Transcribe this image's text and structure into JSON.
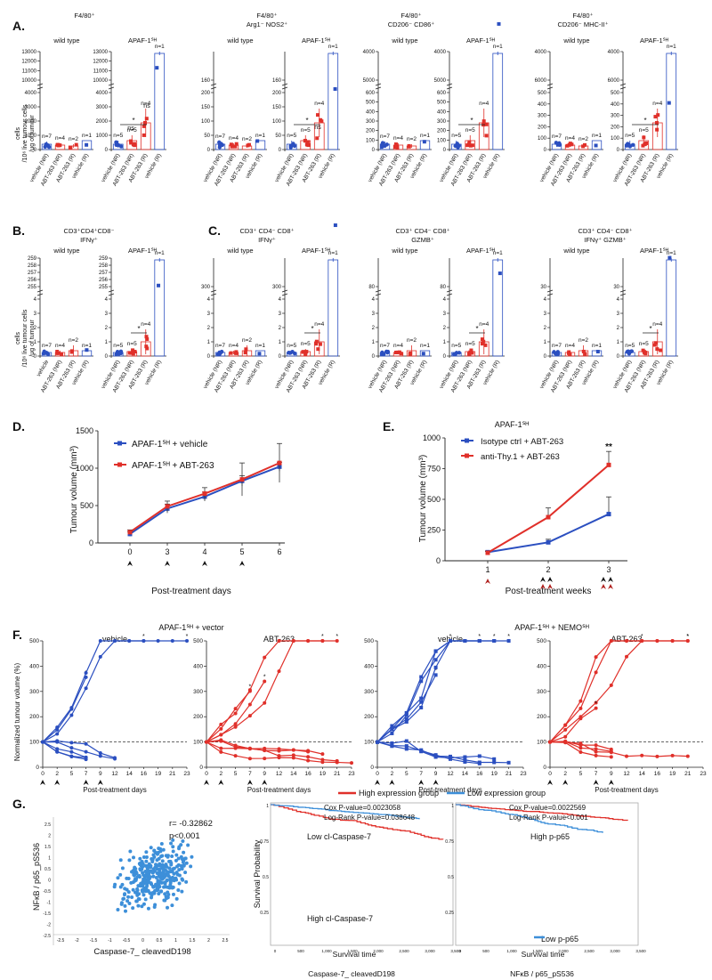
{
  "colors": {
    "blue": "#2b4fc0",
    "red": "#e0302a",
    "darkred": "#b0201d",
    "black": "#111111",
    "gray": "#777777"
  },
  "panels": {
    "A": {
      "letter": "A.",
      "ylabel": [
        "cells",
        "/10⁶ live tumour cells",
        "/μg of tumour"
      ],
      "groups": [
        {
          "title": [
            "F4/80⁺"
          ]
        },
        {
          "title": [
            "F4/80⁺",
            "Arg1⁻ NOS2⁺"
          ]
        },
        {
          "title": [
            "F4/80⁺",
            "CD206⁻ CD86⁺"
          ]
        },
        {
          "title": [
            "F4/80⁺",
            "CD206⁻ MHC-II⁺"
          ]
        }
      ]
    },
    "B": {
      "letter": "B.",
      "ylabel": [
        "cells",
        "/10⁶ live tumour cells",
        "/μg of tumour"
      ],
      "groups": [
        {
          "title": [
            "CD3⁺CD4⁺CD8⁻",
            "IFNγ⁺"
          ]
        }
      ]
    },
    "C": {
      "letter": "C.",
      "groups": [
        {
          "title": [
            "CD3⁺ CD4⁻ CD8⁺",
            "IFNγ⁺"
          ]
        },
        {
          "title": [
            "CD3⁺ CD4⁻ CD8⁺",
            "GZMB⁺"
          ]
        },
        {
          "title": [
            "CD3⁺ CD4⁻ CD8⁺",
            "IFNγ⁺ GZMB⁺"
          ]
        }
      ]
    },
    "subtitles": {
      "wt": "wild type",
      "apaf": "APAF-1ᔆᴴ"
    },
    "xcats_wt": [
      "vehicle (NR)",
      "ABT-263 (NR)",
      "ABT-263 (R)",
      "vehicle (R)"
    ],
    "xcats_wt_b": [
      "vehicle",
      "ABT-263 (NR)",
      "ABT-263 (R)",
      "vehicle (R)"
    ],
    "xcats_apaf": [
      "vehicle (NR)",
      "ABT-263 (NR)",
      "ABT-263 (R)",
      "vehicle (R)"
    ],
    "n_labels_A_wt": [
      "n=7",
      "n=4",
      "n=2",
      "n=1"
    ],
    "n_labels_A_apaf": [
      "n=5",
      "n=5",
      "n=4",
      "n=1"
    ],
    "sig": {
      "star": "*",
      "ns": "ns"
    },
    "D": {
      "letter": "D.",
      "ylabel": "Tumour volume (mm³)",
      "xlabel": "Post-treatment days",
      "legend": [
        "APAF-1ᔆᴴ + vehicle",
        "APAF-1ᔆᴴ + ABT-263"
      ]
    },
    "E": {
      "letter": "E.",
      "title": "APAF-1ᔆᴴ",
      "ylabel": "Tumour volume (mm³)",
      "xlabel": "Post-treatment weeks",
      "legend": [
        "Isotype ctrl + ABT-263",
        "anti-Thy.1 + ABT-263"
      ],
      "sig": "**"
    },
    "F": {
      "letter": "F.",
      "ylabel": "Normalized tumour volume (%)",
      "xlabel": "Post-treatment days",
      "group_titles": [
        "APAF-1ᔆᴴ + vector",
        "APAF-1ᔆᴴ + NEMOᔆᴴ"
      ],
      "sub_titles": [
        "vehicle",
        "ABT-263",
        "vehicle",
        "ABT-263"
      ]
    },
    "G": {
      "letter": "G.",
      "scatter": {
        "r": "r= -0.32862",
        "p": "p<0.001",
        "xlabel": "Caspase-7_ cleavedD198",
        "ylabel": "NFκB / p65_pS536"
      },
      "legend": [
        "High expression group",
        "Low expression group"
      ],
      "km1": {
        "cox": "Cox P-value=0.0023058",
        "logrank": "Log-Rank P-value=0.038648",
        "low": "Low cl-Caspase-7",
        "high": "High cl-Caspase-7",
        "caption": "Caspase-7_ cleavedD198"
      },
      "km2": {
        "cox": "Cox P-value=0.0022569",
        "logrank": "Log-Rank P-value<0.001",
        "high": "High p-p65",
        "low": "Low p-p65",
        "caption": "NFκB / p65_pS536"
      },
      "km_ylabel": "Survival Probability",
      "km_xlabel": "Survival time"
    }
  },
  "chart_data": [
    {
      "type": "line",
      "panel": "D",
      "title": "",
      "x": [
        0,
        3,
        4,
        5,
        6
      ],
      "series": [
        {
          "name": "APAF-1ᔆᴴ + vehicle",
          "values": [
            120,
            460,
            620,
            830,
            1020
          ],
          "err": [
            30,
            60,
            60,
            70,
            60
          ]
        },
        {
          "name": "APAF-1ᔆᴴ + ABT-263",
          "values": [
            145,
            490,
            660,
            850,
            1070
          ],
          "err": [
            30,
            70,
            80,
            220,
            260
          ]
        }
      ],
      "xlabel": "Post-treatment days",
      "ylabel": "Tumour volume (mm³)",
      "ylim": [
        0,
        1500
      ],
      "yticks": [
        0,
        500,
        1000,
        1500
      ],
      "xticks": [
        "0",
        "3",
        "4",
        "5",
        "6"
      ]
    },
    {
      "type": "line",
      "panel": "E",
      "title": "APAF-1ᔆᴴ",
      "x": [
        1,
        2,
        3
      ],
      "series": [
        {
          "name": "Isotype ctrl + ABT-263",
          "values": [
            70,
            150,
            380
          ],
          "err": [
            10,
            25,
            140
          ]
        },
        {
          "name": "anti-Thy.1 + ABT-263",
          "values": [
            65,
            355,
            780
          ],
          "err": [
            10,
            75,
            110
          ]
        }
      ],
      "xlabel": "Post-treatment weeks",
      "ylabel": "Tumour volume (mm³)",
      "ylim": [
        0,
        1000
      ],
      "yticks": [
        0,
        250,
        500,
        750,
        1000
      ],
      "xticks": [
        "1",
        "2",
        "3"
      ]
    },
    {
      "type": "line",
      "panel": "F",
      "title": "Normalized tumour volume",
      "x_ticks": [
        "0",
        "2",
        "5",
        "7",
        "9",
        "12",
        "14",
        "16",
        "19",
        "21",
        "23"
      ],
      "yticks": [
        0,
        100,
        200,
        300,
        400,
        500
      ],
      "ylim": [
        0,
        500
      ],
      "xlabel": "Post-treatment days",
      "ylabel": "Normalized tumour volume (%)"
    },
    {
      "type": "scatter",
      "panel": "G",
      "title": "",
      "xlabel": "Caspase-7_ cleavedD198",
      "ylabel": "NFκB / p65_pS536",
      "xticks": [
        "-2.5",
        "-2",
        "-1.5",
        "-1",
        "-0.5",
        "0",
        "0.5",
        "1",
        "1.5",
        "2",
        "2.5"
      ],
      "yticks": [
        "2.5",
        "2",
        "1.5",
        "1",
        "0.5",
        "0",
        "-0.5",
        "-1",
        "-1.5",
        "-2",
        "-2.5"
      ],
      "r": -0.32862
    },
    {
      "type": "line",
      "panel": "G-KM",
      "title": "",
      "xlabel": "Survival time",
      "ylabel": "Survival Probability",
      "xticks": [
        "0",
        "500",
        "1,000",
        "1,500",
        "2,000",
        "2,500",
        "3,000",
        "3,500"
      ],
      "yticks": [
        "1",
        "0.75",
        "0.5",
        "0.25"
      ]
    }
  ]
}
